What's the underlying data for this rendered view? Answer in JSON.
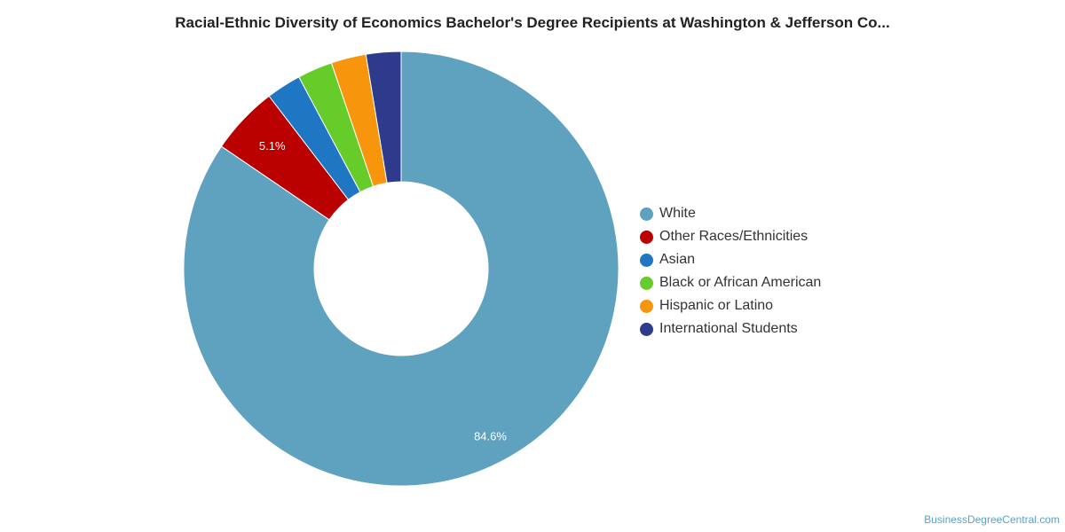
{
  "chart_data": {
    "type": "pie",
    "variant": "donut",
    "title": "Racial-Ethnic Diversity of Economics Bachelor's Degree Recipients at Washington & Jefferson Co...",
    "legend_position": "right",
    "slices": [
      {
        "label": "White",
        "value": 84.6,
        "color": "#5fa2c0",
        "data_label": "84.6%"
      },
      {
        "label": "Other Races/Ethnicities",
        "value": 5.1,
        "color": "#bb0000",
        "data_label": "5.1%"
      },
      {
        "label": "Asian",
        "value": 2.6,
        "color": "#1f77c4",
        "data_label": ""
      },
      {
        "label": "Black or African American",
        "value": 2.6,
        "color": "#66cc29",
        "data_label": ""
      },
      {
        "label": "Hispanic or Latino",
        "value": 2.6,
        "color": "#f7960c",
        "data_label": ""
      },
      {
        "label": "International Students",
        "value": 2.6,
        "color": "#2e3a8c",
        "data_label": ""
      }
    ]
  },
  "watermark": "BusinessDegreeCentral.com"
}
